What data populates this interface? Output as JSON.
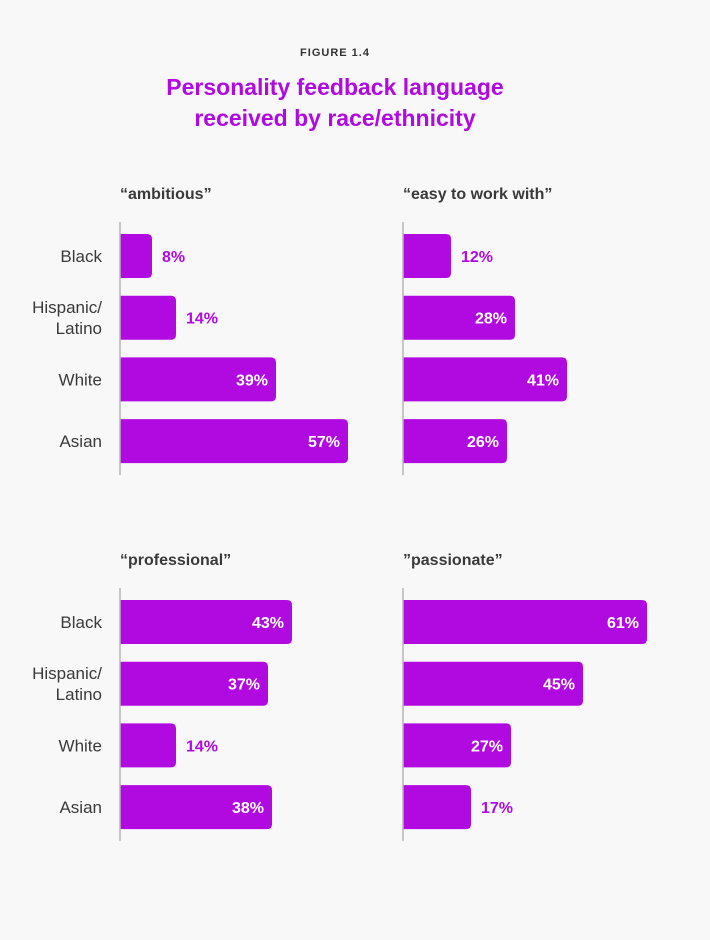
{
  "figure_label": "FIGURE 1.4",
  "title_lines": [
    "Personality feedback language",
    "received by race/ethnicity"
  ],
  "colors": {
    "bar": "#b10ae0",
    "label_outside": "#b10ae0",
    "label_inside": "#ffffff",
    "axis": "#b5b5b5",
    "text": "#3a3a3a"
  },
  "chart_data": [
    {
      "type": "bar",
      "orientation": "horizontal",
      "title": "“ambitious”",
      "categories": [
        "Black",
        "Hispanic/\nLatino",
        "White",
        "Asian"
      ],
      "values": [
        8,
        14,
        39,
        57
      ],
      "value_labels": [
        "8%",
        "14%",
        "39%",
        "57%"
      ],
      "unit": "%"
    },
    {
      "type": "bar",
      "orientation": "horizontal",
      "title": "“easy to work with”",
      "categories": [
        "Black",
        "Hispanic/\nLatino",
        "White",
        "Asian"
      ],
      "values": [
        12,
        28,
        41,
        26
      ],
      "value_labels": [
        "12%",
        "28%",
        "41%",
        "26%"
      ],
      "unit": "%"
    },
    {
      "type": "bar",
      "orientation": "horizontal",
      "title": "“professional”",
      "categories": [
        "Black",
        "Hispanic/\nLatino",
        "White",
        "Asian"
      ],
      "values": [
        43,
        37,
        14,
        38
      ],
      "value_labels": [
        "43%",
        "37%",
        "14%",
        "38%"
      ],
      "unit": "%"
    },
    {
      "type": "bar",
      "orientation": "horizontal",
      "title": "”passionate”",
      "categories": [
        "Black",
        "Hispanic/\nLatino",
        "White",
        "Asian"
      ],
      "values": [
        61,
        45,
        27,
        17
      ],
      "value_labels": [
        "61%",
        "45%",
        "27%",
        "17%"
      ],
      "unit": "%"
    }
  ]
}
